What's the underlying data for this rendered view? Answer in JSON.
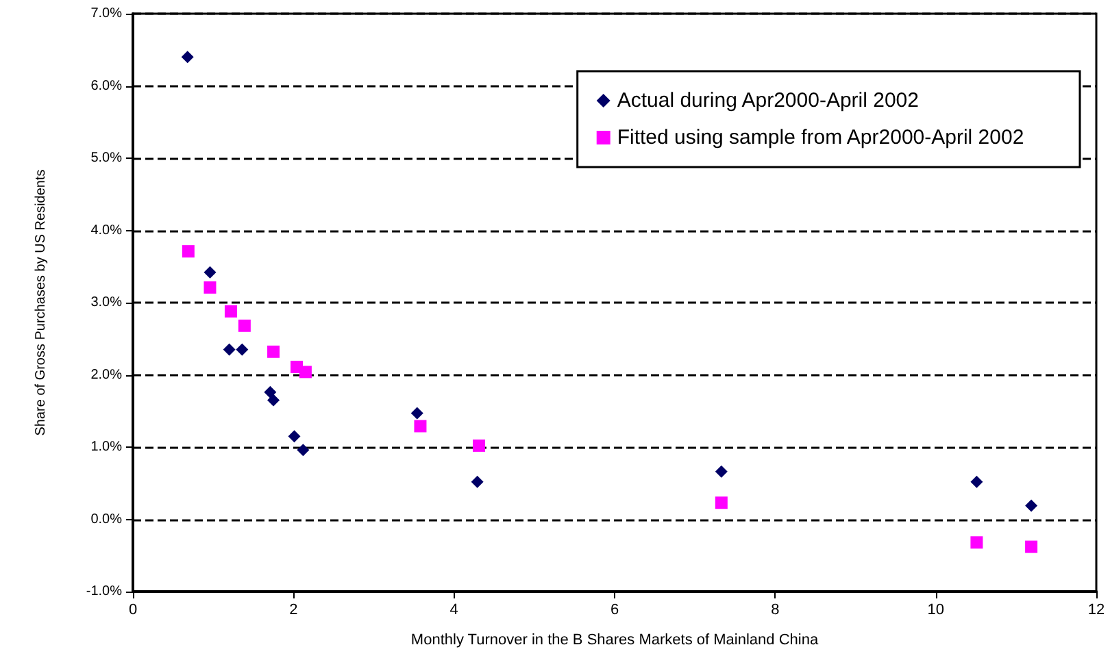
{
  "chart_data": {
    "type": "scatter",
    "xlabel": "Monthly Turnover in the B Shares Markets of Mainland China",
    "ylabel": "Share of Gross Purchases by US Residents",
    "xlim": [
      0,
      12
    ],
    "xticks": [
      0,
      2,
      4,
      6,
      8,
      10,
      12
    ],
    "ylim": [
      -1,
      7
    ],
    "yticks": [
      {
        "value": -1,
        "label": "-1.0%"
      },
      {
        "value": 0,
        "label": "0.0%"
      },
      {
        "value": 1,
        "label": "1.0%"
      },
      {
        "value": 2,
        "label": "2.0%"
      },
      {
        "value": 3,
        "label": "3.0%"
      },
      {
        "value": 4,
        "label": "4.0%"
      },
      {
        "value": 5,
        "label": "5.0%"
      },
      {
        "value": 6,
        "label": "6.0%"
      },
      {
        "value": 7,
        "label": "7.0%"
      }
    ],
    "grid": "y",
    "legend": "top right",
    "series": [
      {
        "name": "Actual during Apr2000-April 2002",
        "color": "#000066",
        "marker": "diamond",
        "x": [
          0.68,
          0.96,
          1.2,
          1.36,
          1.71,
          1.75,
          2.01,
          2.12,
          3.54,
          4.29,
          7.33,
          10.51,
          11.19
        ],
        "values": [
          6.4,
          3.42,
          2.35,
          2.35,
          1.76,
          1.65,
          1.15,
          0.96,
          1.47,
          0.52,
          0.66,
          0.52,
          0.19
        ]
      },
      {
        "name": "Fitted using sample from Apr2000-April 2002",
        "color": "#ff00ff",
        "marker": "square",
        "x": [
          0.69,
          0.96,
          1.22,
          1.39,
          1.75,
          2.04,
          2.15,
          3.58,
          4.31,
          7.33,
          10.51,
          11.19
        ],
        "values": [
          3.71,
          3.21,
          2.88,
          2.68,
          2.32,
          2.11,
          2.04,
          1.29,
          1.02,
          0.23,
          -0.32,
          -0.38
        ]
      }
    ]
  }
}
